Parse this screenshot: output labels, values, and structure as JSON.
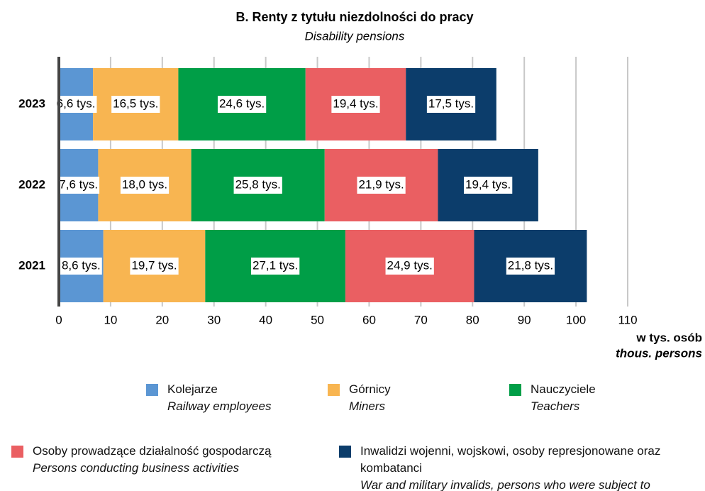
{
  "chart_data": {
    "type": "stacked-barh",
    "title": "B. Renty z tytułu niezdolności do pracy",
    "subtitle": "Disability pensions",
    "categories": [
      "2023",
      "2022",
      "2021"
    ],
    "series": [
      {
        "name": "Kolejarze",
        "name_en": "Railway employees",
        "color": "#5b96d3",
        "values": [
          6.6,
          7.6,
          8.6
        ],
        "value_labels": [
          "6,6 tys.",
          "7,6 tys.",
          "8,6 tys."
        ]
      },
      {
        "name": "Górnicy",
        "name_en": "Miners",
        "color": "#f8b551",
        "values": [
          16.5,
          18.0,
          19.7
        ],
        "value_labels": [
          "16,5 tys.",
          "18,0 tys.",
          "19,7 tys."
        ]
      },
      {
        "name": "Nauczyciele",
        "name_en": "Teachers",
        "color": "#009e47",
        "values": [
          24.6,
          25.8,
          27.1
        ],
        "value_labels": [
          "24,6 tys.",
          "25,8 tys.",
          "27,1 tys."
        ]
      },
      {
        "name": "Osoby prowadzące działalność gospodarczą",
        "name_en": "Persons conducting business activities",
        "color": "#ea5f62",
        "values": [
          19.4,
          21.9,
          24.9
        ],
        "value_labels": [
          "19,4 tys.",
          "21,9 tys.",
          "24,9 tys."
        ]
      },
      {
        "name": "Inwalidzi wojenni, wojskowi, osoby represjonowane oraz kombatanci",
        "name_en": "War and military invalids, persons who were subject to repression and combatants",
        "color": "#0c3d6b",
        "values": [
          17.5,
          19.4,
          21.8
        ],
        "value_labels": [
          "17,5 tys.",
          "19,4 tys.",
          "21,8 tys."
        ]
      }
    ],
    "xlim": [
      0,
      110
    ],
    "xticks": [
      0,
      10,
      20,
      30,
      40,
      50,
      60,
      70,
      80,
      90,
      100,
      110
    ],
    "xlabel": "w tys. osób",
    "xlabel_en": "thous. persons",
    "grid": true
  }
}
